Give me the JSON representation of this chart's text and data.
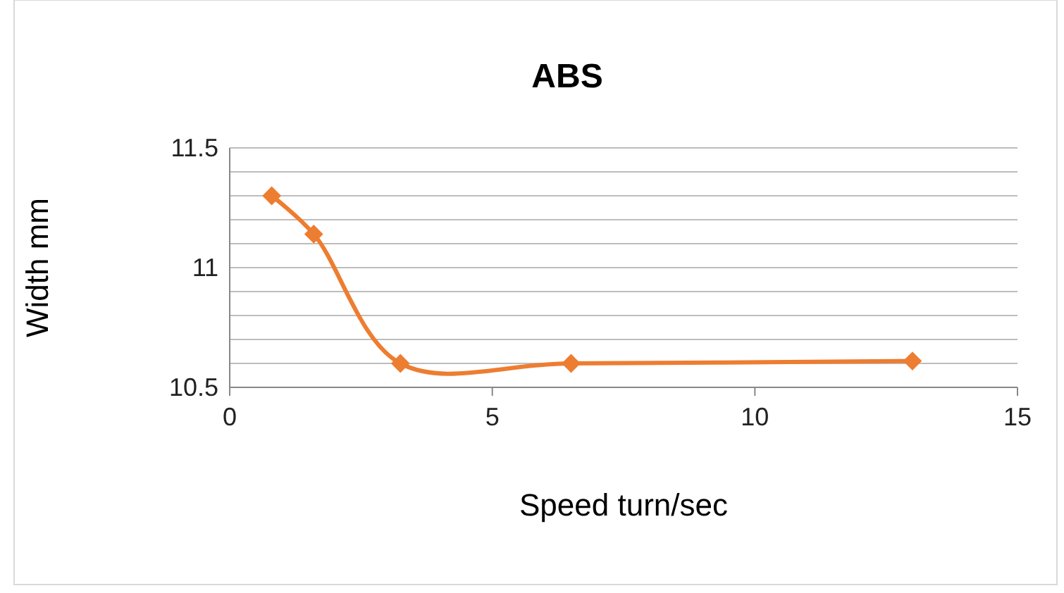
{
  "chart_data": {
    "type": "line",
    "title": "ABS",
    "xlabel": "Speed turn/sec",
    "ylabel": "Width mm",
    "x": [
      0.8,
      1.6,
      3.25,
      6.5,
      13
    ],
    "series": [
      {
        "color": "#ed7d31",
        "values": [
          11.3,
          11.14,
          10.6,
          10.6,
          10.61
        ]
      }
    ],
    "xlim": [
      0,
      15
    ],
    "xticks": [
      0,
      5,
      10,
      15
    ],
    "ylim": [
      10.5,
      11.5
    ],
    "yticks": [
      10.5,
      {
        "value": 10.6,
        "label": null
      },
      {
        "value": 10.7,
        "label": null
      },
      {
        "value": 10.8,
        "label": null
      },
      {
        "value": 10.9,
        "label": null
      },
      11,
      {
        "value": 11.1,
        "label": null
      },
      {
        "value": 11.2,
        "label": null
      },
      {
        "value": 11.3,
        "label": null
      },
      {
        "value": 11.4,
        "label": null
      },
      11.5
    ],
    "grid": "y",
    "marker": "diamond",
    "line_style": "solid"
  }
}
